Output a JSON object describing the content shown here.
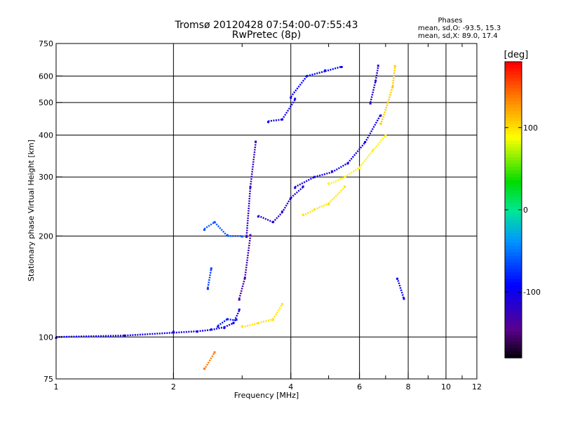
{
  "chart_data": {
    "type": "scatter",
    "title": "Tromsø 20120428 07:54:00-07:55:43",
    "subtitle": "RwPretec (8p)",
    "xlabel": "Frequency [MHz]",
    "ylabel": "Stationary phase Virtual Height [km]",
    "xscale": "log",
    "yscale": "log",
    "xlim": [
      1,
      12
    ],
    "ylim": [
      75,
      750
    ],
    "x_ticks": [
      1,
      2,
      4,
      6,
      8,
      10,
      12
    ],
    "y_ticks": [
      75,
      100,
      200,
      300,
      400,
      500,
      600,
      750
    ],
    "x_grid": [
      2,
      4,
      6,
      8,
      10
    ],
    "y_grid": [
      100,
      200,
      300,
      400,
      500,
      600
    ],
    "grid": true,
    "phase_stats": {
      "header": "Phases",
      "line_o": "mean, sd,O: -93.5, 15.3",
      "line_x": "mean, sd,X: 89.0, 17.4"
    },
    "colorbar": {
      "label": "[deg]",
      "range": [
        -180,
        180
      ],
      "ticks": [
        100,
        0,
        -100
      ],
      "colormap": "rainbow"
    },
    "series": [
      {
        "segments": [
          {
            "x": [
              1.0,
              1.5,
              2.0,
              2.3,
              2.5,
              2.7,
              2.85,
              2.95
            ],
            "y": [
              100,
              101,
              103,
              104,
              105,
              107,
              110,
              120
            ],
            "phase": -100
          },
          {
            "x": [
              2.6,
              2.75,
              2.9
            ],
            "y": [
              108,
              113,
              112
            ],
            "phase": -80
          },
          {
            "x": [
              2.95,
              3.05,
              3.15
            ],
            "y": [
              130,
              150,
              200
            ],
            "phase": -130
          },
          {
            "x": [
              2.4,
              2.55,
              2.75,
              3.0
            ],
            "y": [
              210,
              220,
              200,
              200
            ],
            "phase": -60
          },
          {
            "x": [
              3.08,
              3.15,
              3.25
            ],
            "y": [
              200,
              280,
              380
            ],
            "phase": -120
          },
          {
            "x": [
              3.3,
              3.6,
              3.8,
              4.0,
              4.3
            ],
            "y": [
              230,
              220,
              235,
              260,
              280
            ],
            "phase": -110
          },
          {
            "x": [
              3.5,
              3.8,
              4.1
            ],
            "y": [
              440,
              445,
              510
            ],
            "phase": -100
          },
          {
            "x": [
              4.0,
              4.4,
              4.9,
              5.4
            ],
            "y": [
              520,
              600,
              620,
              640
            ],
            "phase": -90
          },
          {
            "x": [
              4.1,
              4.6,
              5.1,
              5.6,
              6.2,
              6.8
            ],
            "y": [
              280,
              300,
              310,
              330,
              380,
              460
            ],
            "phase": -100
          },
          {
            "x": [
              6.4,
              6.6,
              6.7
            ],
            "y": [
              500,
              580,
              640
            ],
            "phase": -110
          },
          {
            "x": [
              2.45,
              2.5
            ],
            "y": [
              140,
              160
            ],
            "phase": -70
          },
          {
            "x": [
              7.5,
              7.8
            ],
            "y": [
              150,
              130
            ],
            "phase": -90
          }
        ]
      },
      {
        "segments": [
          {
            "x": [
              3.0,
              3.3,
              3.6,
              3.8
            ],
            "y": [
              107,
              110,
              113,
              125
            ],
            "phase": 100
          },
          {
            "x": [
              4.3,
              4.6,
              5.0,
              5.5
            ],
            "y": [
              230,
              240,
              250,
              280
            ],
            "phase": 100
          },
          {
            "x": [
              5.0,
              5.5,
              6.0,
              6.5,
              7.0
            ],
            "y": [
              285,
              300,
              320,
              360,
              400
            ],
            "phase": 95
          },
          {
            "x": [
              6.8,
              7.1,
              7.3,
              7.4
            ],
            "y": [
              430,
              500,
              560,
              640
            ],
            "phase": 110
          },
          {
            "x": [
              2.4,
              2.55
            ],
            "y": [
              80,
              90
            ],
            "phase": 140
          }
        ]
      }
    ]
  }
}
